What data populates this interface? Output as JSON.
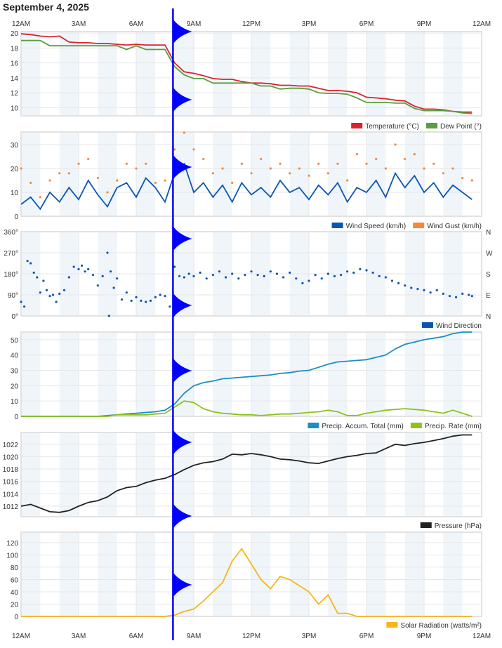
{
  "title": "September 4, 2025",
  "time_axis": {
    "ticks": [
      "12AM",
      "3AM",
      "6AM",
      "9AM",
      "12PM",
      "3PM",
      "6PM",
      "9PM",
      "12AM"
    ],
    "range": [
      "00:00",
      "24:00"
    ]
  },
  "cursor_time": "07:55",
  "colors": {
    "cursor": "#0000ff",
    "band": "#f0f5fa",
    "grid": "#e6e6e6"
  },
  "chart_data": [
    {
      "type": "line",
      "ylim": [
        8.9,
        20.2
      ],
      "yticks": [
        10,
        12,
        14,
        16,
        18,
        20
      ],
      "ytick_labels": [
        "10",
        "12",
        "14",
        "16",
        "18",
        "20"
      ],
      "x": [
        "00:00",
        "00:30",
        "01:00",
        "01:30",
        "02:00",
        "02:30",
        "03:00",
        "03:30",
        "04:00",
        "04:30",
        "05:00",
        "05:30",
        "06:00",
        "06:30",
        "07:00",
        "07:30",
        "08:00",
        "08:30",
        "09:00",
        "09:30",
        "10:00",
        "10:30",
        "11:00",
        "11:30",
        "12:00",
        "12:30",
        "13:00",
        "13:30",
        "14:00",
        "14:30",
        "15:00",
        "15:30",
        "16:00",
        "16:30",
        "17:00",
        "17:30",
        "18:00",
        "18:30",
        "19:00",
        "19:30",
        "20:00",
        "20:30",
        "21:00",
        "21:30",
        "22:00",
        "22:30",
        "23:00",
        "23:30"
      ],
      "series": [
        {
          "name": "Temperature (°C)",
          "color": "#d9232e",
          "values": [
            19.9,
            19.8,
            19.6,
            19.5,
            19.6,
            18.8,
            18.7,
            18.7,
            18.6,
            18.6,
            18.5,
            18.4,
            18.5,
            18.4,
            18.4,
            18.4,
            16.0,
            14.8,
            14.6,
            14.3,
            13.9,
            13.8,
            13.8,
            13.5,
            13.3,
            13.3,
            13.2,
            13.0,
            13.0,
            12.9,
            12.9,
            12.6,
            12.3,
            12.3,
            12.2,
            12.0,
            11.4,
            11.3,
            11.2,
            11.0,
            10.9,
            10.2,
            9.8,
            9.8,
            9.7,
            9.5,
            9.4,
            9.4
          ]
        },
        {
          "name": "Dew Point (°)",
          "color": "#5a9e3f",
          "values": [
            19.0,
            19.0,
            19.0,
            18.3,
            18.3,
            18.3,
            18.3,
            18.3,
            18.3,
            18.3,
            18.3,
            17.8,
            18.3,
            17.8,
            17.8,
            17.8,
            15.5,
            14.4,
            13.9,
            13.9,
            13.3,
            13.3,
            13.3,
            13.3,
            13.3,
            12.9,
            12.9,
            12.5,
            12.6,
            12.6,
            12.5,
            12.0,
            11.9,
            11.9,
            11.8,
            11.3,
            10.7,
            10.7,
            10.7,
            10.6,
            10.6,
            9.9,
            9.6,
            9.6,
            9.6,
            9.5,
            9.3,
            9.2
          ]
        }
      ]
    },
    {
      "type": "line",
      "ylim": [
        0,
        35.3
      ],
      "yticks": [
        0,
        10,
        20,
        30
      ],
      "ytick_labels": [
        "0",
        "10",
        "20",
        "30"
      ],
      "x": [
        "00:00",
        "00:30",
        "01:00",
        "01:30",
        "02:00",
        "02:30",
        "03:00",
        "03:30",
        "04:00",
        "04:30",
        "05:00",
        "05:30",
        "06:00",
        "06:30",
        "07:00",
        "07:30",
        "08:00",
        "08:30",
        "09:00",
        "09:30",
        "10:00",
        "10:30",
        "11:00",
        "11:30",
        "12:00",
        "12:30",
        "13:00",
        "13:30",
        "14:00",
        "14:30",
        "15:00",
        "15:30",
        "16:00",
        "16:30",
        "17:00",
        "17:30",
        "18:00",
        "18:30",
        "19:00",
        "19:30",
        "20:00",
        "20:30",
        "21:00",
        "21:30",
        "22:00",
        "22:30",
        "23:00",
        "23:30"
      ],
      "series": [
        {
          "name": "Wind Speed (km/h)",
          "color": "#0a56b4",
          "style": "line",
          "values": [
            5,
            8,
            3,
            10,
            6,
            12,
            7,
            15,
            9,
            4,
            12,
            14,
            8,
            16,
            12,
            6,
            18,
            22,
            10,
            14,
            8,
            13,
            6,
            14,
            9,
            12,
            8,
            15,
            10,
            12,
            7,
            13,
            9,
            14,
            6,
            12,
            10,
            15,
            8,
            18,
            12,
            17,
            10,
            14,
            8,
            13,
            10,
            7
          ]
        },
        {
          "name": "Wind Gust (km/h)",
          "color": "#f5883a",
          "style": "dots",
          "values": [
            20,
            14,
            8,
            15,
            18,
            18,
            22,
            24,
            16,
            10,
            15,
            22,
            20,
            22,
            14,
            15,
            28,
            35,
            28,
            24,
            18,
            20,
            14,
            22,
            18,
            24,
            20,
            22,
            18,
            20,
            17,
            22,
            18,
            22,
            15,
            26,
            22,
            24,
            20,
            30,
            24,
            26,
            20,
            22,
            18,
            20,
            16,
            15
          ]
        }
      ]
    },
    {
      "type": "scatter",
      "ylim": [
        0,
        360
      ],
      "yticks": [
        0,
        90,
        180,
        270,
        360
      ],
      "ytick_labels": [
        "0°",
        "90°",
        "180°",
        "270°",
        "360°"
      ],
      "right_labels": [
        "N",
        "E",
        "S",
        "W",
        "N"
      ],
      "series": [
        {
          "name": "Wind Direction",
          "color": "#0a56b4",
          "x": [
            "00:00",
            "00:10",
            "00:20",
            "00:30",
            "00:40",
            "00:50",
            "01:00",
            "01:10",
            "01:20",
            "01:30",
            "01:40",
            "01:50",
            "02:00",
            "02:15",
            "02:30",
            "02:45",
            "03:00",
            "03:10",
            "03:20",
            "03:30",
            "03:45",
            "04:00",
            "04:15",
            "04:30",
            "04:35",
            "04:40",
            "04:50",
            "05:00",
            "05:15",
            "05:30",
            "05:45",
            "06:00",
            "06:15",
            "06:30",
            "06:45",
            "07:00",
            "07:15",
            "07:30",
            "07:45",
            "08:00",
            "08:15",
            "08:30",
            "08:45",
            "09:00",
            "09:20",
            "09:40",
            "10:00",
            "10:20",
            "10:40",
            "11:00",
            "11:20",
            "11:40",
            "12:00",
            "12:20",
            "12:40",
            "13:00",
            "13:20",
            "13:40",
            "14:00",
            "14:20",
            "14:40",
            "15:00",
            "15:20",
            "15:40",
            "16:00",
            "16:20",
            "16:40",
            "17:00",
            "17:20",
            "17:40",
            "18:00",
            "18:20",
            "18:40",
            "19:00",
            "19:20",
            "19:40",
            "20:00",
            "20:20",
            "20:40",
            "21:00",
            "21:20",
            "21:40",
            "22:00",
            "22:20",
            "22:40",
            "23:00",
            "23:20",
            "23:30"
          ],
          "values": [
            60,
            40,
            235,
            225,
            185,
            165,
            100,
            150,
            110,
            85,
            90,
            60,
            95,
            110,
            165,
            210,
            200,
            215,
            190,
            200,
            175,
            130,
            170,
            270,
            0,
            190,
            120,
            160,
            70,
            100,
            65,
            80,
            65,
            60,
            65,
            80,
            90,
            85,
            40,
            210,
            170,
            165,
            180,
            170,
            185,
            160,
            175,
            190,
            165,
            180,
            160,
            175,
            190,
            175,
            170,
            190,
            180,
            165,
            185,
            160,
            140,
            150,
            175,
            160,
            180,
            170,
            175,
            190,
            185,
            200,
            195,
            185,
            170,
            165,
            150,
            140,
            130,
            120,
            115,
            110,
            100,
            110,
            95,
            85,
            80,
            95,
            90,
            85
          ]
        }
      ]
    },
    {
      "type": "area",
      "ylim": [
        0,
        55
      ],
      "yticks": [
        0,
        10,
        20,
        30,
        40,
        50
      ],
      "ytick_labels": [
        "0",
        "10",
        "20",
        "30",
        "40",
        "50"
      ],
      "x": [
        "00:00",
        "00:30",
        "01:00",
        "01:30",
        "02:00",
        "02:30",
        "03:00",
        "03:30",
        "04:00",
        "04:30",
        "05:00",
        "05:30",
        "06:00",
        "06:30",
        "07:00",
        "07:30",
        "08:00",
        "08:30",
        "09:00",
        "09:30",
        "10:00",
        "10:30",
        "11:00",
        "11:30",
        "12:00",
        "12:30",
        "13:00",
        "13:30",
        "14:00",
        "14:30",
        "15:00",
        "15:30",
        "16:00",
        "16:30",
        "17:00",
        "17:30",
        "18:00",
        "18:30",
        "19:00",
        "19:30",
        "20:00",
        "20:30",
        "21:00",
        "21:30",
        "22:00",
        "22:30",
        "23:00",
        "23:30"
      ],
      "series": [
        {
          "name": "Precip. Accum. Total (mm)",
          "color": "#1a8fc4",
          "values": [
            0,
            0,
            0,
            0,
            0,
            0,
            0,
            0,
            0,
            0.5,
            1,
            1.5,
            2,
            2.5,
            3,
            4,
            8,
            15,
            20,
            22,
            23,
            24.5,
            25,
            25.5,
            26,
            26.5,
            27,
            28,
            28.5,
            29.5,
            30,
            32,
            34,
            35.5,
            36,
            36.5,
            37,
            38.5,
            40,
            44,
            47,
            48.5,
            50,
            51,
            52,
            54,
            55,
            55
          ]
        },
        {
          "name": "Precip. Rate (mm)",
          "color": "#8cc21a",
          "values": [
            0,
            0,
            0,
            0,
            0,
            0,
            0,
            0,
            0,
            0,
            1,
            1,
            1,
            1,
            1.5,
            2,
            6,
            10,
            9,
            5,
            3,
            2,
            1.5,
            1,
            1,
            0.5,
            1,
            1.5,
            1.5,
            2,
            2.5,
            3,
            4,
            3,
            0.5,
            0.5,
            2,
            3,
            4,
            4.5,
            5,
            4.5,
            4,
            3,
            2,
            4,
            2,
            0
          ]
        }
      ]
    },
    {
      "type": "line",
      "ylim": [
        1010.3,
        1023.9
      ],
      "yticks": [
        1012,
        1014,
        1016,
        1018,
        1020,
        1022
      ],
      "ytick_labels": [
        "1012",
        "1014",
        "1016",
        "1018",
        "1020",
        "1022"
      ],
      "x": [
        "00:00",
        "00:30",
        "01:00",
        "01:30",
        "02:00",
        "02:30",
        "03:00",
        "03:30",
        "04:00",
        "04:30",
        "05:00",
        "05:30",
        "06:00",
        "06:30",
        "07:00",
        "07:30",
        "08:00",
        "08:30",
        "09:00",
        "09:30",
        "10:00",
        "10:30",
        "11:00",
        "11:30",
        "12:00",
        "12:30",
        "13:00",
        "13:30",
        "14:00",
        "14:30",
        "15:00",
        "15:30",
        "16:00",
        "16:30",
        "17:00",
        "17:30",
        "18:00",
        "18:30",
        "19:00",
        "19:30",
        "20:00",
        "20:30",
        "21:00",
        "21:30",
        "22:00",
        "22:30",
        "23:00",
        "23:30"
      ],
      "series": [
        {
          "name": "Pressure (hPa)",
          "color": "#222222",
          "values": [
            1012,
            1012.3,
            1011.7,
            1011.1,
            1011,
            1011.3,
            1012,
            1012.6,
            1012.9,
            1013.5,
            1014.5,
            1015,
            1015.2,
            1015.8,
            1016.2,
            1016.5,
            1017.1,
            1017.9,
            1018.6,
            1019,
            1019.2,
            1019.6,
            1020.4,
            1020.3,
            1020.5,
            1020.3,
            1020,
            1019.6,
            1019.5,
            1019.3,
            1019,
            1018.9,
            1019.3,
            1019.7,
            1020,
            1020.2,
            1020.5,
            1020.6,
            1021.3,
            1022,
            1021.8,
            1022.1,
            1022.3,
            1022.6,
            1022.9,
            1023.3,
            1023.5,
            1023.5
          ]
        }
      ]
    },
    {
      "type": "line",
      "ylim": [
        0,
        137
      ],
      "yticks": [
        0,
        20,
        40,
        60,
        80,
        100,
        120
      ],
      "ytick_labels": [
        "0",
        "20",
        "40",
        "60",
        "80",
        "100",
        "120"
      ],
      "x": [
        "00:00",
        "00:30",
        "01:00",
        "01:30",
        "02:00",
        "02:30",
        "03:00",
        "03:30",
        "04:00",
        "04:30",
        "05:00",
        "05:30",
        "06:00",
        "06:30",
        "07:00",
        "07:30",
        "08:00",
        "08:30",
        "09:00",
        "09:30",
        "10:00",
        "10:30",
        "11:00",
        "11:30",
        "12:00",
        "12:30",
        "13:00",
        "13:30",
        "14:00",
        "14:30",
        "15:00",
        "15:30",
        "16:00",
        "16:30",
        "17:00",
        "17:30",
        "18:00",
        "18:30",
        "19:00",
        "19:30",
        "20:00",
        "20:30",
        "21:00",
        "21:30",
        "22:00",
        "22:30",
        "23:00",
        "23:30"
      ],
      "series": [
        {
          "name": "Solar Radiation (watts/m²)",
          "color": "#f7b51c",
          "values": [
            0,
            0,
            0,
            0,
            0,
            0,
            0,
            0,
            0,
            0,
            0,
            0,
            0,
            0,
            0,
            0,
            2,
            8,
            12,
            25,
            40,
            55,
            90,
            110,
            85,
            60,
            45,
            65,
            60,
            50,
            40,
            20,
            35,
            5,
            5,
            0,
            0,
            0,
            0,
            0,
            0,
            0,
            0,
            0,
            0,
            0,
            0,
            0
          ]
        }
      ]
    }
  ]
}
